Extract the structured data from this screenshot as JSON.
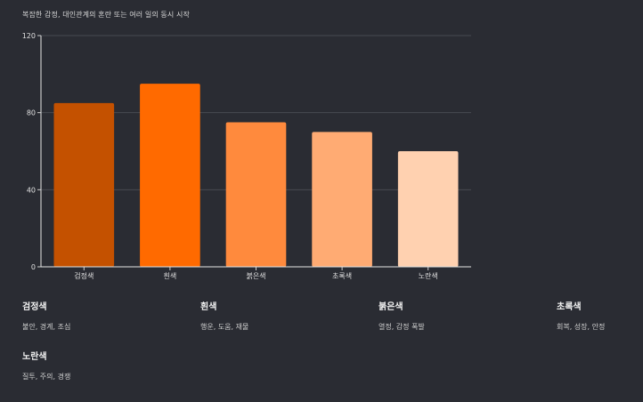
{
  "chart_data": {
    "type": "bar",
    "title": "복잡한 감정, 대인관계의 혼란 또는 여러 일의 동시 시작",
    "categories": [
      "검정색",
      "흰색",
      "붉은색",
      "초록색",
      "노란색"
    ],
    "values": [
      85,
      95,
      75,
      70,
      60
    ],
    "colors": [
      "#c45100",
      "#ff6a00",
      "#ff8a3d",
      "#ffab73",
      "#ffd1b0"
    ],
    "ylim": [
      0,
      120
    ],
    "yticks": [
      0,
      40,
      80,
      120
    ],
    "grid": true,
    "xlabel": "",
    "ylabel": ""
  },
  "legend": [
    {
      "name": "검정색",
      "desc": "불안, 경계, 조심"
    },
    {
      "name": "흰색",
      "desc": "행운, 도움, 재물"
    },
    {
      "name": "붉은색",
      "desc": "열정, 감정 폭발"
    },
    {
      "name": "초록색",
      "desc": "회복, 성장, 안정"
    },
    {
      "name": "노란색",
      "desc": "질투, 주의, 경쟁"
    }
  ]
}
